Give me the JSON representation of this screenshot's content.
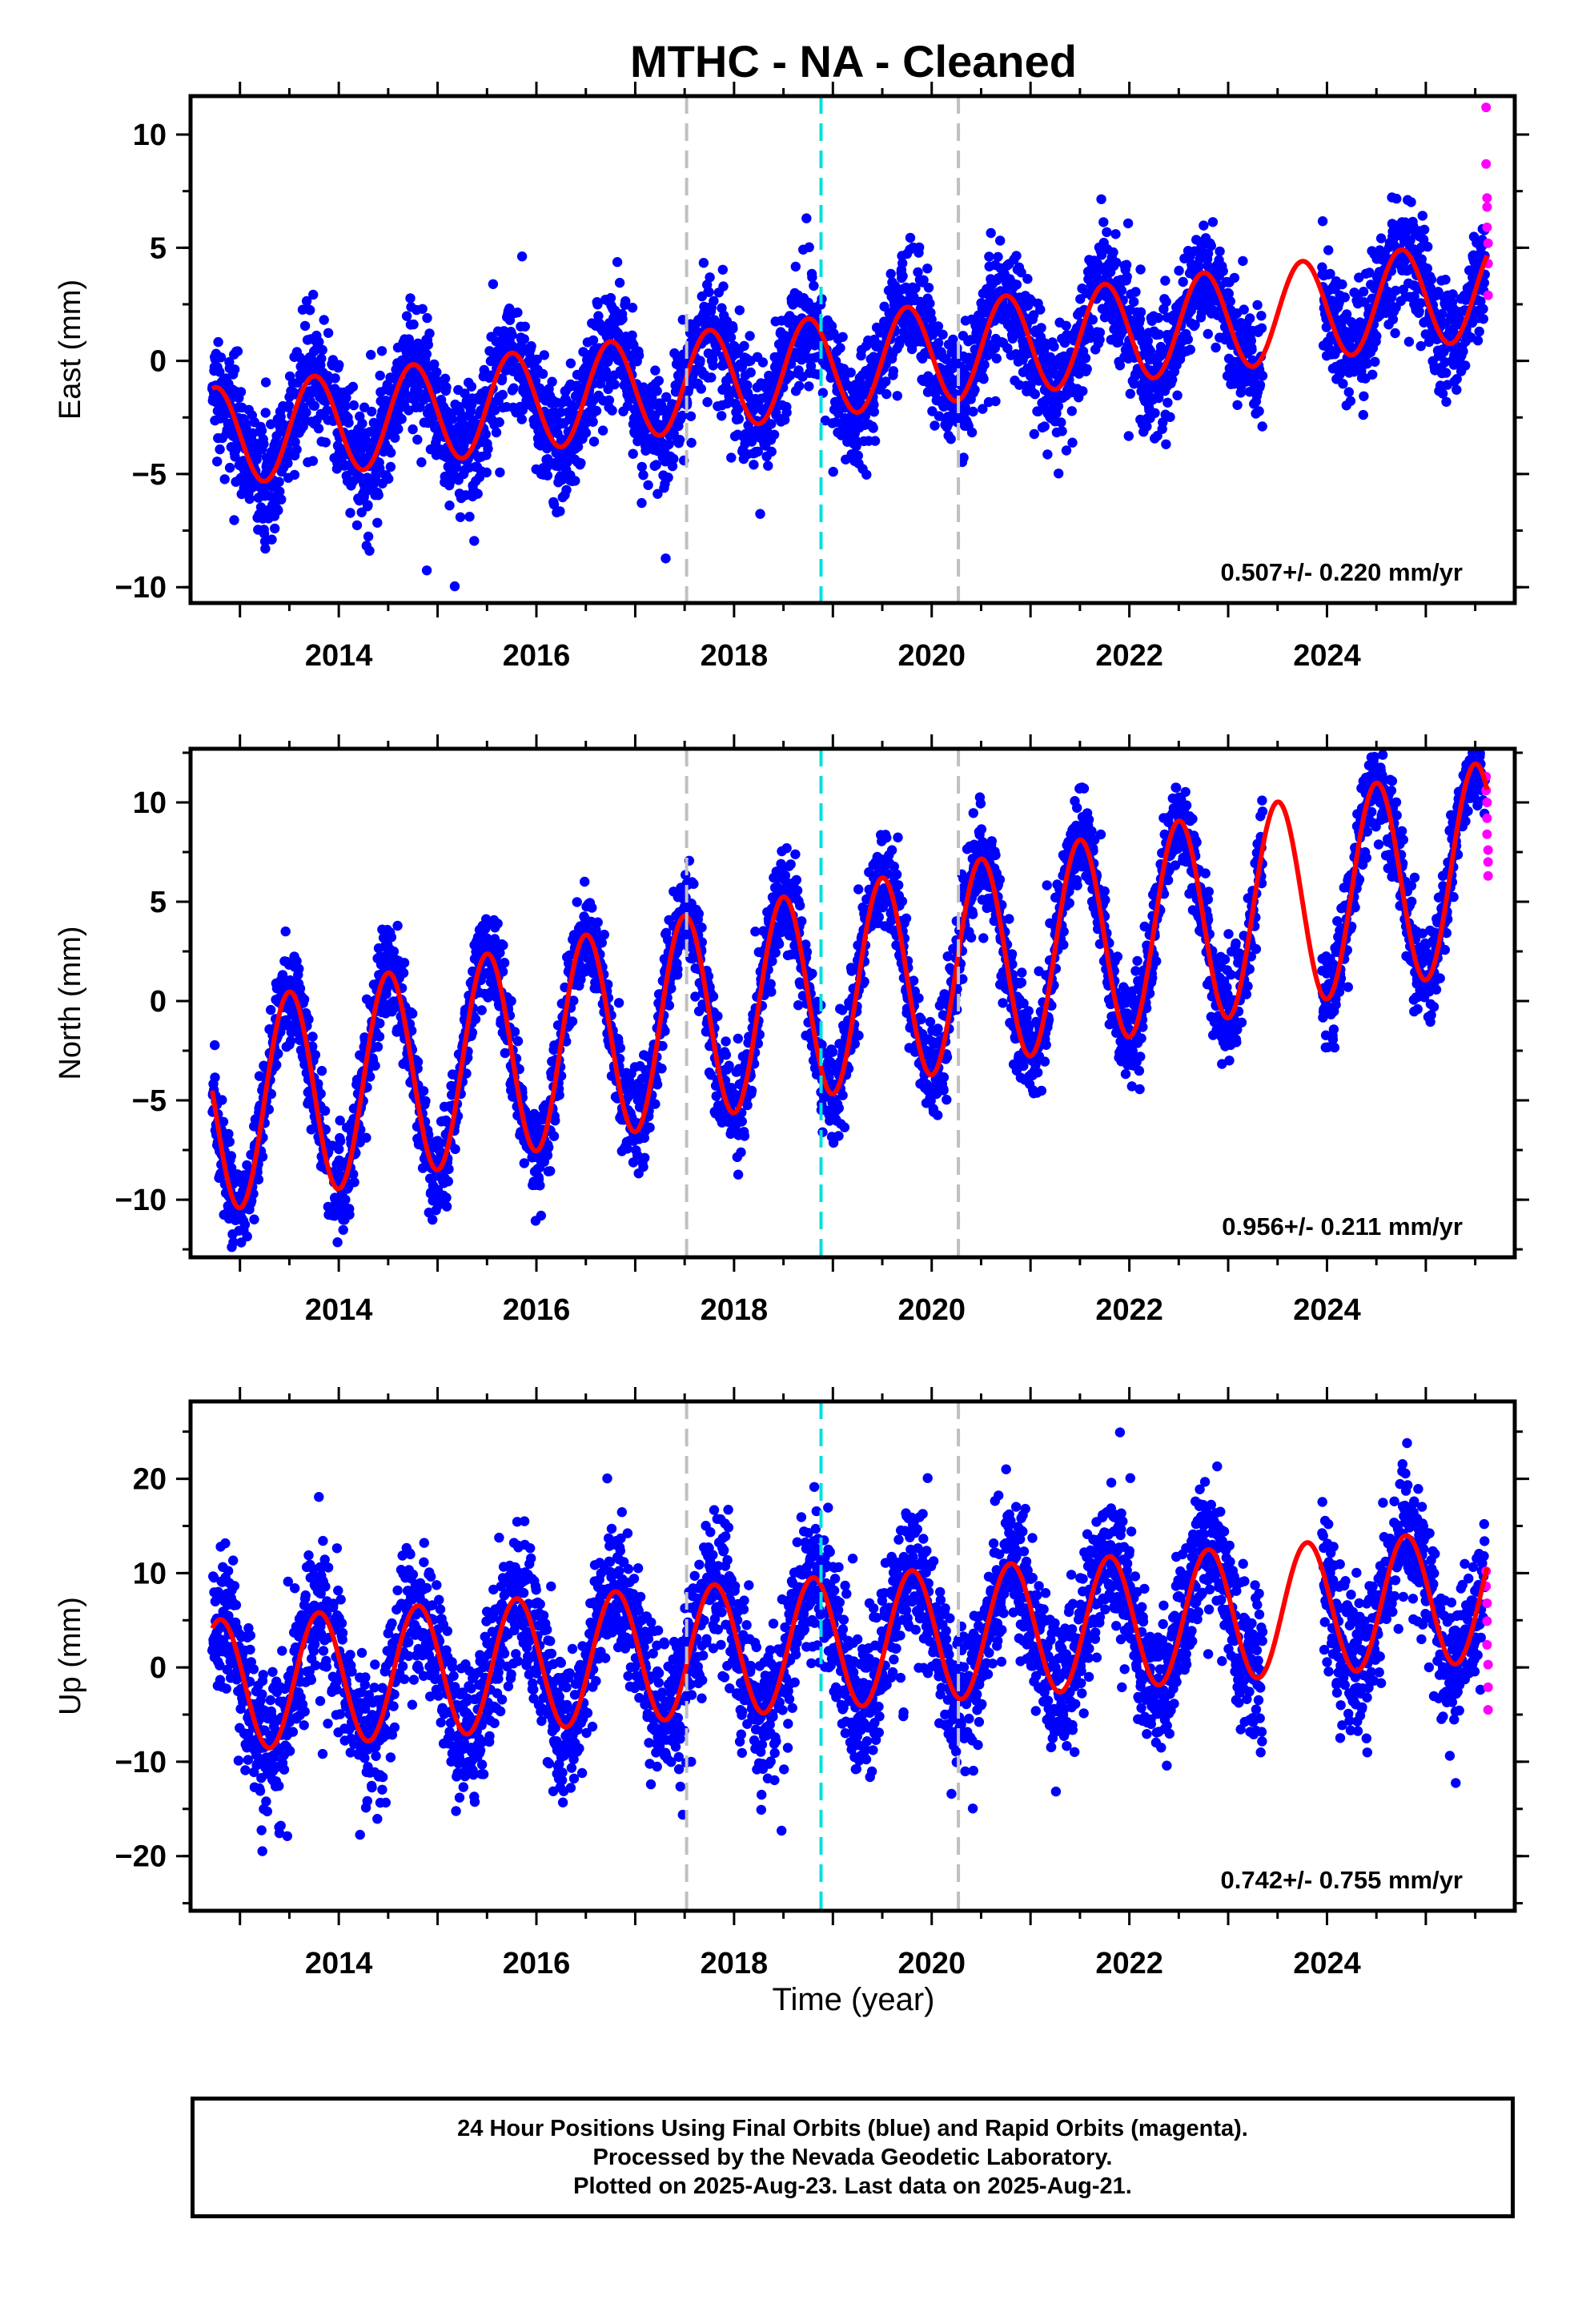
{
  "title": "MTHC  - NA - Cleaned",
  "x_axis_label": "Time (year)",
  "colors": {
    "final_orbits": "#0000ff",
    "rapid_orbits": "#ff00ff",
    "model_fit": "#ff0000",
    "equipment_change": "#c0c0c0",
    "earthquake": "#00e0e0"
  },
  "chart_data": [
    {
      "type": "scatter",
      "component": "East",
      "ylabel": "East (mm)",
      "xlim": [
        2012.5,
        2025.9
      ],
      "ylim": [
        -10.7,
        11.7
      ],
      "yticks": [
        -10,
        -5,
        0,
        5,
        10
      ],
      "xticks": [
        2014,
        2016,
        2018,
        2020,
        2022,
        2024
      ],
      "rate_text": "0.507+/- 0.220 mm/yr",
      "rate": 0.507,
      "rate_sigma": 0.22,
      "model": {
        "offset": -3.4,
        "trend": 0.507,
        "annual_amplitude": 2.2,
        "annual_phase_peak": 0.75,
        "noise": 1.3
      },
      "gray_dashed_lines": [
        2017.52,
        2020.27
      ],
      "cyan_dashed_lines": [
        2018.88
      ],
      "rapid_points": [
        [
          2025.61,
          11.2
        ],
        [
          2025.61,
          8.7
        ],
        [
          2025.62,
          7.2
        ],
        [
          2025.62,
          6.8
        ],
        [
          2025.62,
          5.9
        ],
        [
          2025.63,
          5.2
        ],
        [
          2025.63,
          4.3
        ],
        [
          2025.63,
          2.9
        ]
      ]
    },
    {
      "type": "scatter",
      "component": "North",
      "ylabel": "North (mm)",
      "xlim": [
        2012.5,
        2025.9
      ],
      "ylim": [
        -12.9,
        12.7
      ],
      "yticks": [
        -10,
        -5,
        0,
        5,
        10
      ],
      "xticks": [
        2014,
        2016,
        2018,
        2020,
        2022,
        2024
      ],
      "rate_text": "0.956+/- 0.211 mm/yr",
      "rate": 0.956,
      "rate_sigma": 0.211,
      "model": {
        "offset": -5.5,
        "trend": 0.956,
        "annual_amplitude": 5.2,
        "annual_phase_peak": 0.5,
        "noise": 1.2
      },
      "gray_dashed_lines": [
        2017.52,
        2020.27
      ],
      "cyan_dashed_lines": [
        2018.88
      ],
      "rapid_points": [
        [
          2025.61,
          11.3
        ],
        [
          2025.61,
          10.6
        ],
        [
          2025.62,
          10.0
        ],
        [
          2025.62,
          9.2
        ],
        [
          2025.62,
          8.4
        ],
        [
          2025.63,
          7.6
        ],
        [
          2025.63,
          7.0
        ],
        [
          2025.63,
          6.3
        ]
      ]
    },
    {
      "type": "scatter",
      "component": "Up",
      "ylabel": "Up (mm)",
      "xlim": [
        2012.5,
        2025.9
      ],
      "ylim": [
        -25.8,
        28.2
      ],
      "yticks": [
        -20,
        -10,
        0,
        10,
        20
      ],
      "xticks": [
        2014,
        2016,
        2018,
        2020,
        2022,
        2024
      ],
      "rate_text": "0.742+/- 0.755 mm/yr",
      "rate": 0.742,
      "rate_sigma": 0.755,
      "model": {
        "offset": -2.0,
        "trend": 0.742,
        "annual_amplitude": 7.0,
        "annual_phase_peak": 0.8,
        "noise": 3.8
      },
      "gray_dashed_lines": [
        2017.52,
        2020.27
      ],
      "cyan_dashed_lines": [
        2018.88
      ],
      "rapid_points": [
        [
          2025.61,
          10.2
        ],
        [
          2025.61,
          8.6
        ],
        [
          2025.62,
          6.8
        ],
        [
          2025.62,
          4.9
        ],
        [
          2025.62,
          2.4
        ],
        [
          2025.63,
          0.3
        ],
        [
          2025.63,
          -2.1
        ],
        [
          2025.63,
          -4.5
        ]
      ]
    }
  ],
  "caption": {
    "line1": "24 Hour Positions Using Final Orbits (blue) and Rapid Orbits (magenta).",
    "line2": "Processed by the Nevada Geodetic Laboratory.",
    "line3": "Plotted on 2025-Aug-23. Last data on 2025-Aug-21."
  }
}
